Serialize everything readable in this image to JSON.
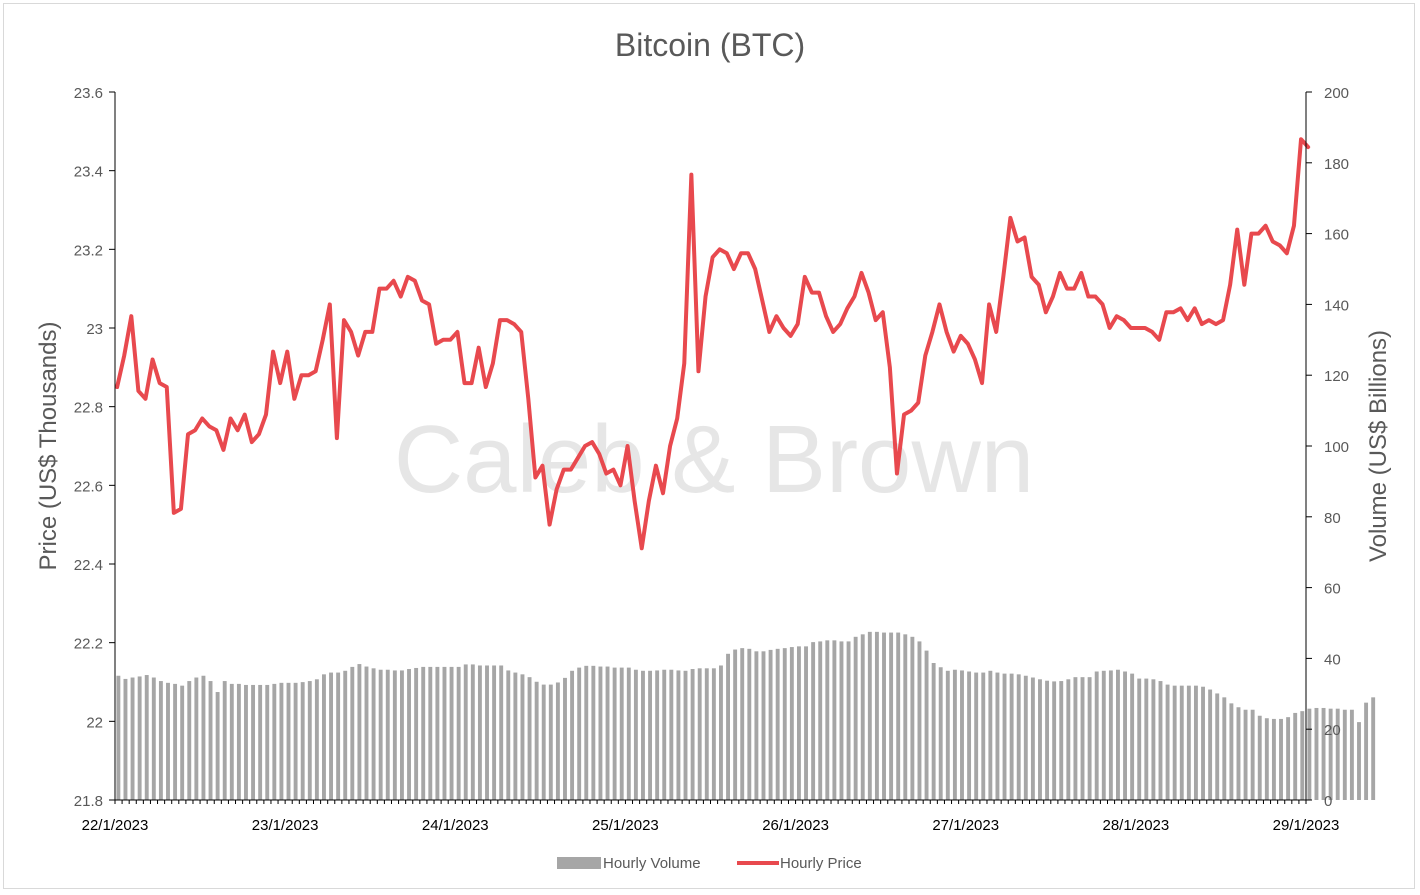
{
  "chart_data": {
    "type": "bar+line",
    "title": "Bitcoin (BTC)",
    "watermark": "Caleb & Brown",
    "ylabel": "Price (US$ Thousands)",
    "y2label": "Volume (US$ Billions)",
    "ylim": [
      21.8,
      23.6
    ],
    "y2lim": [
      0,
      200
    ],
    "yticks": [
      "21.8",
      "22",
      "22.2",
      "22.4",
      "22.6",
      "22.8",
      "23",
      "23.2",
      "23.4",
      "23.6"
    ],
    "y2ticks": [
      "0",
      "20",
      "40",
      "60",
      "80",
      "100",
      "120",
      "140",
      "160",
      "180",
      "200"
    ],
    "xlim": [
      "22/1/2023 00:00",
      "29/1/2023 00:00"
    ],
    "xticks": [
      "22/1/2023",
      "23/1/2023",
      "24/1/2023",
      "25/1/2023",
      "26/1/2023",
      "27/1/2023",
      "28/1/2023",
      "29/1/2023"
    ],
    "grid": false,
    "legend_position": "bottom",
    "colors": {
      "volume": "#a6a6a6",
      "price": "#e8494e",
      "axis": "#000000",
      "text": "#595959"
    },
    "series": [
      {
        "name": "Hourly Volume",
        "type": "bar",
        "axis": "right",
        "x_start": "22/1/2023 00:00",
        "x_step_hours": 1,
        "values": [
          35.1,
          34.2,
          34.6,
          34.9,
          35.3,
          34.6,
          33.6,
          33.1,
          32.8,
          32.3,
          33.6,
          34.6,
          35.1,
          33.6,
          30.5,
          33.6,
          32.8,
          32.8,
          32.5,
          32.5,
          32.5,
          32.5,
          32.8,
          33.1,
          33.1,
          33.1,
          33.3,
          33.6,
          34.1,
          35.5,
          36.0,
          36.0,
          36.5,
          37.6,
          38.4,
          37.7,
          37.2,
          36.8,
          36.8,
          36.6,
          36.6,
          37.0,
          37.3,
          37.6,
          37.6,
          37.6,
          37.6,
          37.6,
          37.6,
          38.3,
          38.3,
          38.0,
          38.0,
          38.0,
          38.0,
          36.6,
          36.0,
          35.5,
          34.7,
          33.4,
          32.6,
          32.6,
          33.2,
          34.5,
          36.5,
          37.4,
          37.9,
          37.9,
          37.7,
          37.7,
          37.4,
          37.4,
          37.4,
          36.8,
          36.5,
          36.5,
          36.6,
          36.8,
          36.8,
          36.6,
          36.5,
          37.0,
          37.2,
          37.2,
          37.2,
          38.0,
          41.3,
          42.5,
          42.9,
          42.7,
          42.0,
          42.0,
          42.4,
          42.7,
          42.9,
          43.2,
          43.4,
          43.4,
          44.6,
          44.8,
          45.1,
          45.1,
          44.8,
          44.8,
          46.1,
          46.8,
          47.5,
          47.5,
          47.3,
          47.3,
          47.3,
          46.8,
          46.1,
          44.8,
          42.2,
          38.7,
          37.5,
          36.5,
          36.8,
          36.6,
          36.3,
          36.0,
          36.0,
          36.5,
          36.0,
          35.7,
          35.7,
          35.5,
          35.1,
          34.6,
          34.1,
          33.7,
          33.5,
          33.6,
          34.1,
          34.7,
          34.7,
          34.7,
          36.3,
          36.5,
          36.6,
          36.8,
          36.3,
          35.7,
          34.3,
          34.3,
          34.1,
          33.6,
          32.6,
          32.3,
          32.3,
          32.3,
          32.3,
          32.0,
          31.2,
          30.1,
          29.0,
          27.3,
          26.2,
          25.5,
          25.5,
          23.8,
          23.1,
          22.9,
          22.9,
          23.4,
          24.6,
          25.1,
          25.8,
          26.0,
          26.0,
          25.8,
          25.8,
          25.5,
          25.5,
          22.0,
          27.5,
          29.0
        ]
      },
      {
        "name": "Hourly Price",
        "type": "line",
        "axis": "left",
        "x_start": "22/1/2023 00:00",
        "x_step_hours": 1,
        "values": [
          22.85,
          22.93,
          23.03,
          22.84,
          22.82,
          22.92,
          22.86,
          22.85,
          22.53,
          22.54,
          22.73,
          22.74,
          22.77,
          22.75,
          22.74,
          22.69,
          22.77,
          22.74,
          22.78,
          22.71,
          22.73,
          22.78,
          22.94,
          22.86,
          22.94,
          22.82,
          22.88,
          22.88,
          22.89,
          22.97,
          23.06,
          22.72,
          23.02,
          22.99,
          22.93,
          22.99,
          22.99,
          23.1,
          23.1,
          23.12,
          23.08,
          23.13,
          23.12,
          23.07,
          23.06,
          22.96,
          22.97,
          22.97,
          22.99,
          22.86,
          22.86,
          22.95,
          22.85,
          22.91,
          23.02,
          23.02,
          23.01,
          22.99,
          22.82,
          22.62,
          22.65,
          22.5,
          22.59,
          22.64,
          22.64,
          22.67,
          22.7,
          22.71,
          22.68,
          22.63,
          22.64,
          22.6,
          22.7,
          22.56,
          22.44,
          22.56,
          22.65,
          22.58,
          22.7,
          22.77,
          22.91,
          23.39,
          22.89,
          23.08,
          23.18,
          23.2,
          23.19,
          23.15,
          23.19,
          23.19,
          23.15,
          23.07,
          22.99,
          23.03,
          23.0,
          22.98,
          23.01,
          23.13,
          23.09,
          23.09,
          23.03,
          22.99,
          23.01,
          23.05,
          23.08,
          23.14,
          23.09,
          23.02,
          23.04,
          22.9,
          22.63,
          22.78,
          22.79,
          22.81,
          22.93,
          22.99,
          23.06,
          22.99,
          22.94,
          22.98,
          22.96,
          22.92,
          22.86,
          23.06,
          22.99,
          23.13,
          23.28,
          23.22,
          23.23,
          23.13,
          23.11,
          23.04,
          23.08,
          23.14,
          23.1,
          23.1,
          23.14,
          23.08,
          23.08,
          23.06,
          23.0,
          23.03,
          23.02,
          23.0,
          23.0,
          23.0,
          22.99,
          22.97,
          23.04,
          23.04,
          23.05,
          23.02,
          23.05,
          23.01,
          23.02,
          23.01,
          23.02,
          23.11,
          23.25,
          23.11,
          23.24,
          23.24,
          23.26,
          23.22,
          23.21,
          23.19,
          23.26,
          23.48,
          23.46
        ]
      }
    ]
  }
}
